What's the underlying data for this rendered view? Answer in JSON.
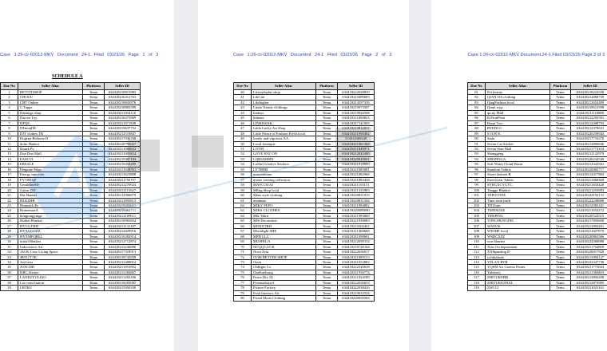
{
  "pages": [
    {
      "header": "Case 1:26-cv-02012-MKV  Document 24-1  Filed 03/23/26  Page 1 of 3",
      "title": "SCHEDULE A",
      "rows": [
        [
          "1",
          "BETTITSHOP",
          "Temu",
          "634418218813983"
        ],
        [
          "2",
          "CHOUU",
          "Temu",
          "634418216412763"
        ],
        [
          "3",
          "CHT Online",
          "Temu",
          "634418218843876"
        ],
        [
          "4",
          "C.Tappa",
          "Temu",
          "634418218803599"
        ],
        [
          "5",
          "Dantings shop",
          "Temu",
          "634418212054110"
        ],
        [
          "6",
          "Darcen Toy",
          "Temu",
          "634418216373869"
        ],
        [
          "7",
          "DFQE",
          "Temu",
          "634418211971948"
        ],
        [
          "8",
          "DFmoqIM",
          "Temu",
          "634418219637752"
        ],
        [
          "9",
          "DIY clothes TR",
          "Temu",
          "634418212519847"
        ],
        [
          "10",
          "Dogena Berkene D",
          "Temu",
          "634418217036768"
        ],
        [
          "11",
          "dolin Hanket",
          "Temu",
          "634418220793027"
        ],
        [
          "12",
          "Drunk Po",
          "Temu",
          "634418211080043"
        ],
        [
          "13",
          "Duo Duo Mall",
          "Temu",
          "634418211003654"
        ],
        [
          "14",
          "EASCVI",
          "Temu",
          "634418219487184"
        ],
        [
          "15",
          "EBSALE",
          "Temu",
          "634418219454290"
        ],
        [
          "16",
          "Elegante Edge",
          "Temu",
          "634418211828761"
        ],
        [
          "17",
          "Energy injection",
          "Temu",
          "634418211823888"
        ],
        [
          "18",
          "FYVRTQF",
          "Temu",
          "634418211756797"
        ],
        [
          "19",
          "GeraldineMe",
          "Temu",
          "634418212270624"
        ],
        [
          "20",
          "Gaton DIY",
          "Temu",
          "634418212115627"
        ],
        [
          "21",
          "Hat Hanket",
          "Temu",
          "634418212906879"
        ],
        [
          "22",
          "HLKZHB",
          "Temu",
          "634418211895813"
        ],
        [
          "23",
          "HomeatLiFe",
          "Temu",
          "634418218203011"
        ],
        [
          "24",
          "HomemartA",
          "Temu",
          "634418218462711"
        ],
        [
          "25",
          "hongtongyinga",
          "Temu",
          "634418212109611"
        ],
        [
          "26",
          "Huibei Blanket",
          "Temu",
          "634418210965854"
        ],
        [
          "27",
          "HYUGTHJF",
          "Temu",
          "634418212131187"
        ],
        [
          "28",
          "HYXGGGZZ",
          "Temu",
          "634418212029816"
        ],
        [
          "29",
          "HYXMPQHLL",
          "Temu",
          "634418210282814"
        ],
        [
          "30",
          "initial Blanket",
          "Temu",
          "634418212712874"
        ],
        [
          "31",
          "Indoorsiece Art",
          "Temu",
          "634418212244880"
        ],
        [
          "32",
          "JACK Cosy Living Space",
          "Temu",
          "634418217318913"
        ],
        [
          "33",
          "JBYGYTK",
          "Temu",
          "634418218742838"
        ],
        [
          "34",
          "JoyLasia",
          "Temu",
          "634418212408014"
        ],
        [
          "35",
          "JUNCDD",
          "Temu",
          "634418211853902"
        ],
        [
          "36",
          "KBG Sticker",
          "Temu",
          "634418212384867"
        ],
        [
          "37",
          "LANEZYULIAO",
          "Temu",
          "634418211282186"
        ],
        [
          "38",
          "Las coast button",
          "Temu",
          "634418218203087"
        ],
        [
          "39",
          "LBTKU",
          "Temu",
          "634418215950330"
        ]
      ]
    },
    {
      "header": "Case 1:26-cv-02012-MKV  Document 24-1  Filed 03/23/26  Page 2 of 3",
      "title": "",
      "rows": [
        [
          "40",
          "Lifestyleplus shop",
          "Temu",
          "634418222028859"
        ],
        [
          "41",
          "LikCim",
          "Temu",
          "634418219489683"
        ],
        [
          "42",
          "Likthigher",
          "Temu",
          "634418214597339"
        ],
        [
          "43",
          "Linda Trendy clothings",
          "Temu",
          "634418219973587"
        ],
        [
          "44",
          "lindays",
          "Temu",
          "634418219926568"
        ],
        [
          "45",
          "linhaua",
          "Temu",
          "634418211869823"
        ],
        [
          "46",
          "LINKKKKK",
          "Temu",
          "634418217141005"
        ],
        [
          "47",
          "Little Lucky Art Shop",
          "Temu",
          "634418219832837"
        ],
        [
          "48",
          "Little Prince of Fashion Fresh local",
          "Temu",
          "634418211990482"
        ],
        [
          "49",
          "lovely and vigorous AA",
          "Temu",
          "313013369249"
        ],
        [
          "50",
          "Local boutique",
          "Temu",
          "634418211861368"
        ],
        [
          "51",
          "LOTM",
          "Temu",
          "634418211849971"
        ],
        [
          "52",
          "LOVE HAT ON",
          "Temu",
          "634418212022480"
        ],
        [
          "53",
          "LQRIAMMN",
          "Temu",
          "634418220920001"
        ],
        [
          "54",
          "LuShe Creative Stickers",
          "Temu",
          "634418211818800"
        ],
        [
          "55",
          "LVTHDB",
          "Temu",
          "634418211685081"
        ],
        [
          "56",
          "maryamsone",
          "Temu",
          "634418211082968"
        ],
        [
          "57",
          "maree rotating collection",
          "Temu",
          "634418211893458"
        ],
        [
          "58",
          "MAYCOUAI",
          "Temu",
          "634418211103151"
        ],
        [
          "59",
          "MEng Shop local",
          "Temu",
          "634418211335983"
        ],
        [
          "60",
          "Mens style clothing",
          "Temu",
          "634418220831015"
        ],
        [
          "61",
          "menman",
          "Temu",
          "634418220831304"
        ],
        [
          "62",
          "MIKY FEFO",
          "Temu",
          "634418211984892"
        ],
        [
          "63",
          "MIKS CLOTHES",
          "Temu",
          "634418220080090"
        ],
        [
          "64",
          "Mik Tshirt",
          "Temu",
          "634418211983069"
        ],
        [
          "65",
          "MIS Decoration",
          "Temu",
          "634418211938083"
        ],
        [
          "66",
          "MIXIXTRH",
          "Temu",
          "634418210202461"
        ],
        [
          "67",
          "Moonlight SHE",
          "Temu",
          "634418211466668"
        ],
        [
          "68",
          "MPD LLC",
          "Temu",
          "634418211998681"
        ],
        [
          "69",
          "MUSHIUA",
          "Temu",
          "634418222039152"
        ],
        [
          "70",
          "NCQQ LUCK",
          "Temu",
          "634418218720164"
        ],
        [
          "71",
          "Nova Zest",
          "Temu",
          "634418222636017"
        ],
        [
          "72",
          "OOM BETTER SHOP",
          "Temu",
          "634418211889153"
        ],
        [
          "73",
          "Ossia",
          "Temu",
          "634418211852802"
        ],
        [
          "74",
          "Oldfigin Co",
          "Temu",
          "634418222326658"
        ],
        [
          "75",
          "OneEnelsong",
          "Temu",
          "634418211936774"
        ],
        [
          "76",
          "Peace Diy JX",
          "Temu",
          "634418211934189"
        ],
        [
          "77",
          "PersonalstyaA",
          "Temu",
          "634418222636653"
        ],
        [
          "78",
          "Picture Factory",
          "Temu",
          "634418222038426"
        ],
        [
          "79",
          "Posh Interiors Art",
          "Temu",
          "634418219633524"
        ],
        [
          "80",
          "Proud Mona Clothing",
          "Temu",
          "634418220839584"
        ]
      ]
    },
    {
      "header": "Case 1:26-cv-02012-MKV  Document 24-1  Filed 03/23/26  Page 3 of 3",
      "title": "",
      "rows": [
        [
          "81",
          "Pet beauty",
          "Temu",
          "634418218224558"
        ],
        [
          "82",
          "QIAN JIA clothing",
          "Temu",
          "634418212868729"
        ],
        [
          "83",
          "QingFashion local",
          "Temu",
          "634418212654409"
        ],
        [
          "84",
          "Qinni wyp",
          "Temu",
          "634418218613598"
        ],
        [
          "85",
          "qu.ny Mall",
          "Temu",
          "634418211118888"
        ],
        [
          "86",
          "R.PrintPrint",
          "Temu",
          "634418212293501"
        ],
        [
          "87",
          "Rasut Two",
          "Temu",
          "634418212008793"
        ],
        [
          "88",
          "RVEDCG",
          "Temu",
          "634418212378631"
        ],
        [
          "89",
          "S JUN K",
          "Temu",
          "634418220258944"
        ],
        [
          "90",
          "Sadu",
          "Temu",
          "634418217716376"
        ],
        [
          "91",
          "Seven Cat Sticker",
          "Temu",
          "634418212890646"
        ],
        [
          "92",
          "Seven Stan Mall",
          "Temu",
          "634418211774104"
        ],
        [
          "93",
          "Shanggeng",
          "Temu",
          "634418212122979"
        ],
        [
          "94",
          "SHOPINGA",
          "Temu",
          "634418220234549"
        ],
        [
          "95",
          "Soft Warm Cloud Warm",
          "Temu",
          "634418212342941"
        ],
        [
          "96",
          "Standout Tshirts",
          "Temu",
          "634418220082717"
        ],
        [
          "97",
          "Street fashion B",
          "Temu",
          "634418212017803"
        ],
        [
          "98",
          "Streetwear Tshirts",
          "Temu",
          "634418211868368"
        ],
        [
          "99",
          "SYRGXCYGYC",
          "Temu",
          "634418211843420"
        ],
        [
          "100",
          "Tangge Blanket",
          "Temu",
          "634418211293983"
        ],
        [
          "101",
          "TEPOOTEE",
          "Temu",
          "634418222193131"
        ],
        [
          "102",
          "Time train truth",
          "Temu",
          "634418222248868"
        ],
        [
          "103",
          "TITZvan",
          "Temu",
          "634418212083441"
        ],
        [
          "104",
          "TMNSUNE",
          "Temu",
          "634418211652272"
        ],
        [
          "105",
          "TMSPING",
          "Temu",
          "634418220524515"
        ],
        [
          "106",
          "TONGHUNGFEI",
          "Temu",
          "634418217850600"
        ],
        [
          "107",
          "WAYUK",
          "Temu",
          "634418211883281"
        ],
        [
          "108",
          "WESHE local",
          "Temu",
          "634418211607879"
        ],
        [
          "109",
          "WSDCXZZ",
          "Temu",
          "634418220863566"
        ],
        [
          "110",
          "wsn blanket",
          "Temu",
          "634418222068888"
        ],
        [
          "111",
          "Xiao Ou department",
          "Temu",
          "634418211764800"
        ],
        [
          "112",
          "XXlbpanting D",
          "Temu",
          "634418220017929"
        ],
        [
          "113",
          "ychhiedane",
          "Temu",
          "634418213094127"
        ],
        [
          "114",
          "YFLAN BTB",
          "Temu",
          "634418222347736"
        ],
        [
          "115",
          "YQSM Art Canvas Poster",
          "Temu",
          "634418211775043"
        ],
        [
          "116",
          "Yuhleery",
          "Temu",
          "634418211369403"
        ],
        [
          "117",
          "ZHITUKEBB",
          "Temu",
          "634418213894458"
        ],
        [
          "118",
          "ZHITUKEJIXAL",
          "Temu",
          "634418212873985"
        ],
        [
          "119",
          "ZWLLI",
          "Temu",
          "634418211023161"
        ]
      ]
    }
  ],
  "columns": [
    "Doe No",
    "Seller Alias",
    "Platform",
    "Seller ID"
  ],
  "colors": {
    "header_link": "#2b3fd6",
    "watermark_blue": "#2a8be6",
    "page_gap": "#eceef1"
  }
}
